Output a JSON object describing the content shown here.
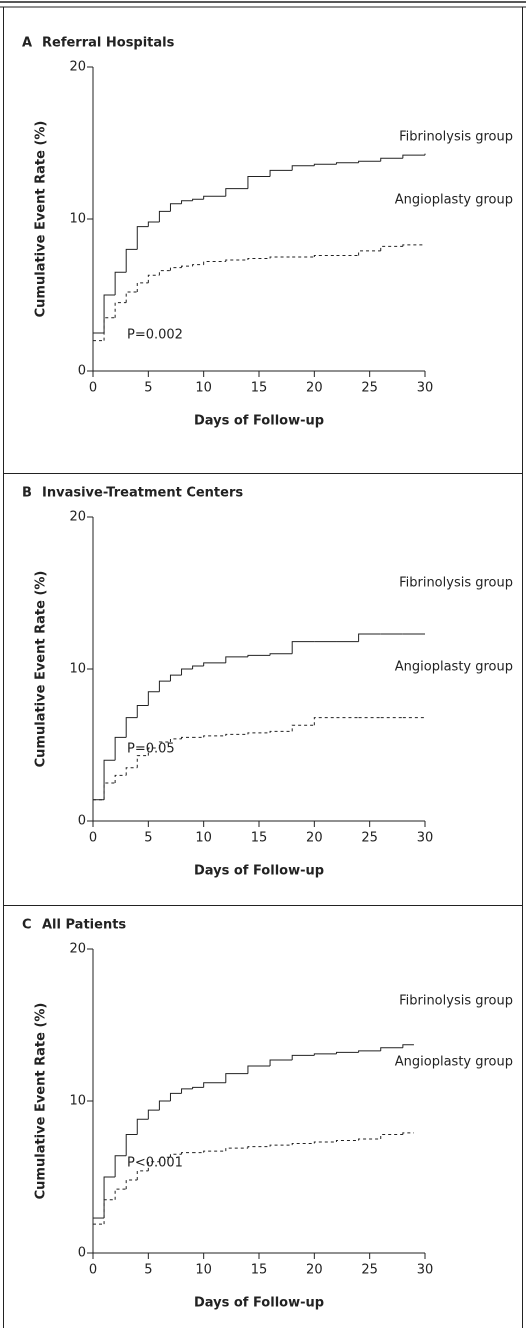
{
  "chart_data": [
    {
      "type": "step",
      "panel": "A",
      "title": "Referral Hospitals",
      "xlabel": "Days of Follow-up",
      "ylabel": "Cumulative Event Rate (%)",
      "annotation": "P=0.002",
      "x": [
        0,
        1,
        2,
        3,
        4,
        5,
        6,
        7,
        8,
        9,
        10,
        12,
        14,
        16,
        18,
        20,
        22,
        24,
        26,
        28,
        30
      ],
      "series": [
        {
          "name": "Fibrinolysis group",
          "color": "#222222",
          "dashed": false,
          "values": [
            2.5,
            5,
            6.5,
            8,
            9.5,
            9.8,
            10.5,
            11,
            11.2,
            11.3,
            11.5,
            12,
            12.8,
            13.2,
            13.5,
            13.6,
            13.7,
            13.8,
            14,
            14.2,
            14.3
          ]
        },
        {
          "name": "Angioplasty group",
          "color": "#222222",
          "dashed": true,
          "values": [
            2,
            3.5,
            4.5,
            5.2,
            5.8,
            6.3,
            6.6,
            6.8,
            6.9,
            7,
            7.2,
            7.3,
            7.4,
            7.5,
            7.5,
            7.6,
            7.6,
            7.9,
            8.2,
            8.3,
            8.3
          ]
        }
      ],
      "xlim": [
        0,
        30
      ],
      "ylim": [
        0,
        20
      ],
      "xticks": [
        0,
        5,
        10,
        15,
        20,
        25,
        30
      ],
      "yticks": [
        0,
        10,
        20
      ]
    },
    {
      "type": "step",
      "panel": "B",
      "title": "Invasive-Treatment Centers",
      "xlabel": "Days of Follow-up",
      "ylabel": "Cumulative Event Rate (%)",
      "annotation": "P=0.05",
      "x": [
        0,
        1,
        2,
        3,
        4,
        5,
        6,
        7,
        8,
        9,
        10,
        12,
        14,
        16,
        18,
        20,
        22,
        24,
        26,
        28,
        30
      ],
      "series": [
        {
          "name": "Fibrinolysis group",
          "color": "#222222",
          "dashed": false,
          "values": [
            1.4,
            4,
            5.5,
            6.8,
            7.6,
            8.5,
            9.2,
            9.6,
            10,
            10.2,
            10.4,
            10.8,
            10.9,
            11,
            11.8,
            11.8,
            11.8,
            12.3,
            12.3,
            12.3,
            12.3
          ]
        },
        {
          "name": "Angioplasty group",
          "color": "#222222",
          "dashed": true,
          "values": [
            1.4,
            2.5,
            3,
            3.5,
            4.3,
            4.8,
            5.2,
            5.4,
            5.5,
            5.5,
            5.6,
            5.7,
            5.8,
            5.9,
            6.3,
            6.8,
            6.8,
            6.8,
            6.8,
            6.8,
            6.8
          ]
        }
      ],
      "xlim": [
        0,
        30
      ],
      "ylim": [
        0,
        20
      ],
      "xticks": [
        0,
        5,
        10,
        15,
        20,
        25,
        30
      ],
      "yticks": [
        0,
        10,
        20
      ]
    },
    {
      "type": "step",
      "panel": "C",
      "title": "All Patients",
      "xlabel": "Days of Follow-up",
      "ylabel": "Cumulative Event Rate (%)",
      "annotation": "P<0.001",
      "x": [
        0,
        1,
        2,
        3,
        4,
        5,
        6,
        7,
        8,
        9,
        10,
        12,
        14,
        16,
        18,
        20,
        22,
        24,
        26,
        28,
        29
      ],
      "series": [
        {
          "name": "Fibrinolysis group",
          "color": "#222222",
          "dashed": false,
          "values": [
            2.3,
            5,
            6.4,
            7.8,
            8.8,
            9.4,
            10,
            10.5,
            10.8,
            10.9,
            11.2,
            11.8,
            12.3,
            12.7,
            13,
            13.1,
            13.2,
            13.3,
            13.5,
            13.7,
            13.7
          ]
        },
        {
          "name": "Angioplasty group",
          "color": "#222222",
          "dashed": true,
          "values": [
            1.9,
            3.5,
            4.2,
            4.8,
            5.4,
            6,
            6.3,
            6.5,
            6.6,
            6.6,
            6.7,
            6.9,
            7,
            7.1,
            7.2,
            7.3,
            7.4,
            7.5,
            7.8,
            7.9,
            7.9
          ]
        }
      ],
      "xlim": [
        0,
        30
      ],
      "ylim": [
        0,
        20
      ],
      "xticks": [
        0,
        5,
        10,
        15,
        20,
        25,
        30
      ],
      "yticks": [
        0,
        10,
        20
      ]
    }
  ]
}
